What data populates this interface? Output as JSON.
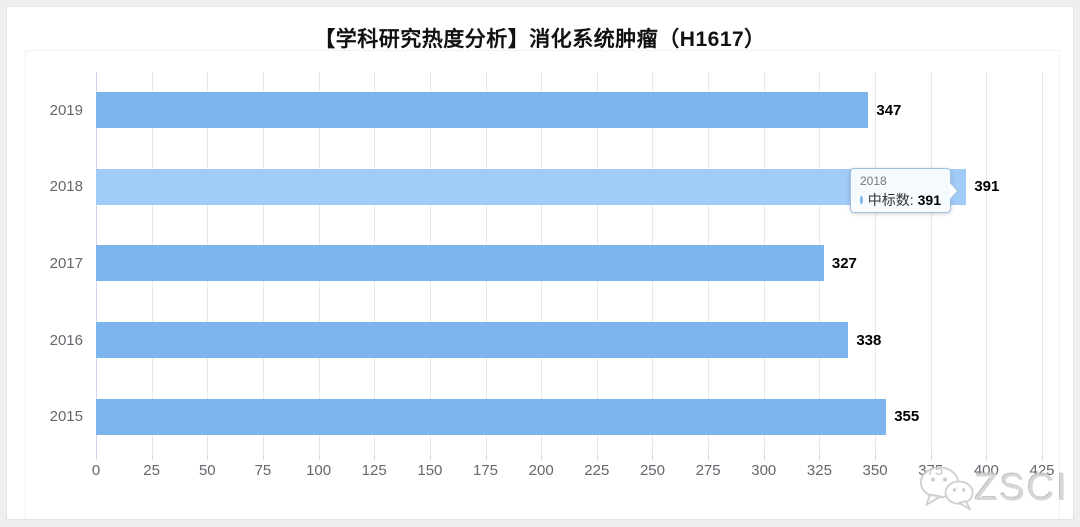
{
  "title": "【学科研究热度分析】消化系统肿瘤（H1617）",
  "chart_data": {
    "type": "bar",
    "orientation": "horizontal",
    "title": "【学科研究热度分析】消化系统肿瘤（H1617）",
    "categories": [
      "2019",
      "2018",
      "2017",
      "2016",
      "2015"
    ],
    "series": [
      {
        "name": "中标数",
        "values": [
          347,
          391,
          327,
          338,
          355
        ]
      }
    ],
    "highlighted_category": "2018",
    "xlim": [
      0,
      425
    ],
    "x_ticks": [
      0,
      25,
      50,
      75,
      100,
      125,
      150,
      175,
      200,
      225,
      250,
      275,
      300,
      325,
      350,
      375,
      400,
      425
    ],
    "grid": true,
    "colors": {
      "bar": "#7cb5ec",
      "bar_highlight": "#a2ccf8",
      "gridline": "#e7e7ec",
      "axis_line": "#ccd6eb",
      "axis_label": "#66666e",
      "value_label": "#000000"
    }
  },
  "tooltip": {
    "header": "2018",
    "series_label": "中标数:",
    "value": "391",
    "dot_color": "#7cb5ec"
  },
  "watermark": {
    "text": "ZSCI",
    "icon": "wechat-icon"
  }
}
